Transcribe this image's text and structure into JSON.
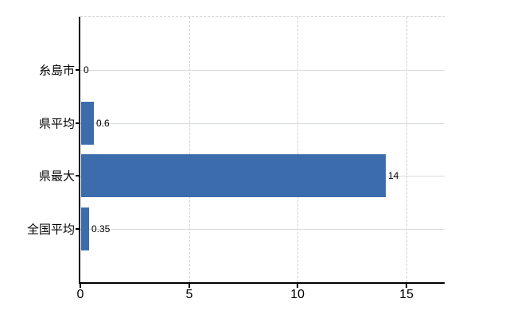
{
  "chart_data": {
    "type": "bar",
    "orientation": "horizontal",
    "title": "",
    "categories": [
      "糸島市",
      "県平均",
      "県最大",
      "全国平均"
    ],
    "values": [
      0,
      0.6,
      14,
      0.35
    ],
    "value_labels": [
      "0",
      "0.6",
      "14",
      "0.35"
    ],
    "x_ticks": [
      0,
      5,
      10,
      15
    ],
    "x_tick_labels": [
      "0",
      "5",
      "10",
      "15"
    ],
    "xlim": [
      0,
      16.75
    ],
    "grid": true,
    "legend_position": "none",
    "colors": {
      "bar": "#3c6cab",
      "h_gridline": "#d7ddd7",
      "v_gridline": "#d5cfd3",
      "axis": "#000000",
      "text": "#000000",
      "background": "#ffffff"
    }
  }
}
